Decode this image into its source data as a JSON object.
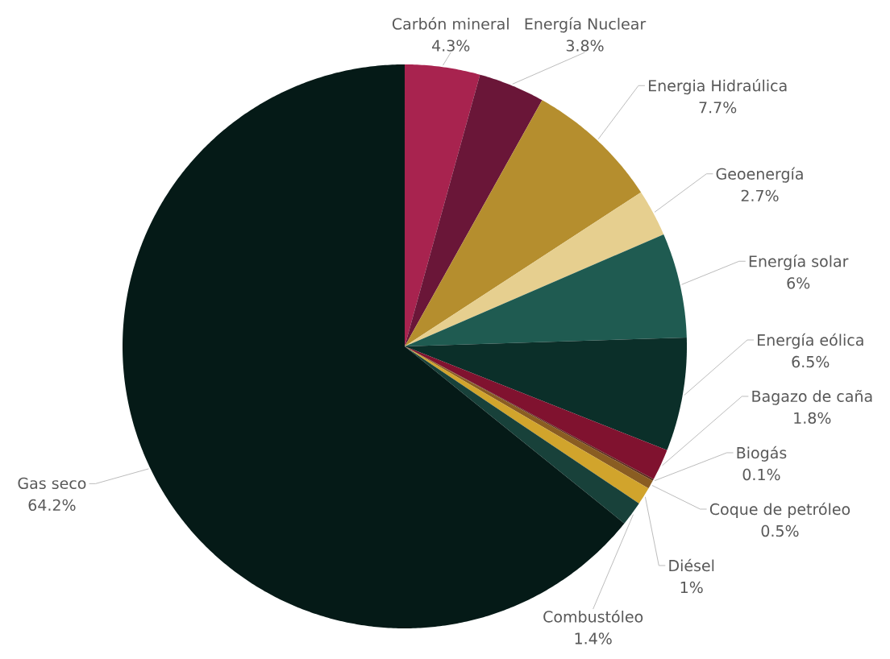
{
  "chart_data": {
    "type": "pie",
    "categories": [
      "Carbón mineral",
      "Energía Nuclear",
      "Energia Hidraúlica",
      "Geoenergía",
      "Energía solar",
      "Energía eólica",
      "Bagazo de caña",
      "Biogás",
      "Coque de petróleo",
      "Diésel",
      "Combustóleo",
      "Gas seco"
    ],
    "values": [
      4.3,
      3.8,
      7.7,
      2.7,
      6,
      6.5,
      1.8,
      0.1,
      0.5,
      1,
      1.4,
      64.2
    ],
    "value_labels": [
      "4.3%",
      "3.8%",
      "7.7%",
      "2.7%",
      "6%",
      "6.5%",
      "1.8%",
      "0.1%",
      "0.5%",
      "1%",
      "1.4%",
      "64.2%"
    ],
    "colors": [
      "#a8234f",
      "#6a1638",
      "#b58e2e",
      "#e6cf8f",
      "#1f5b51",
      "#0b2f29",
      "#80122f",
      "#5c2a1e",
      "#8a5d22",
      "#d1a42c",
      "#18413a",
      "#051a17"
    ]
  }
}
